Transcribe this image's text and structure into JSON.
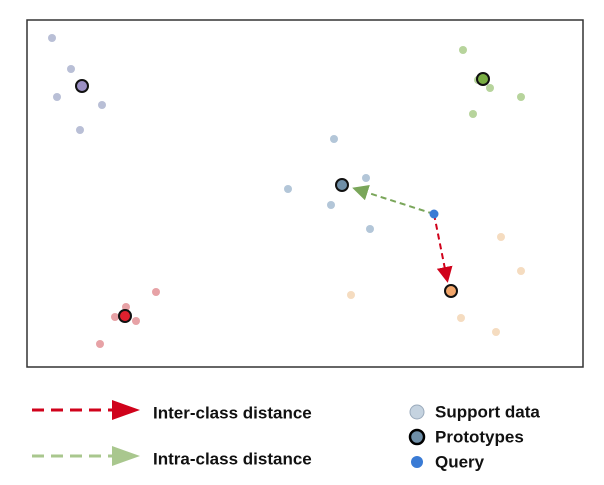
{
  "legend": {
    "arrows": [
      "Inter-class distance",
      "Intra-class distance"
    ],
    "markers": [
      "Support data",
      "Prototypes",
      "Query"
    ]
  }
}
